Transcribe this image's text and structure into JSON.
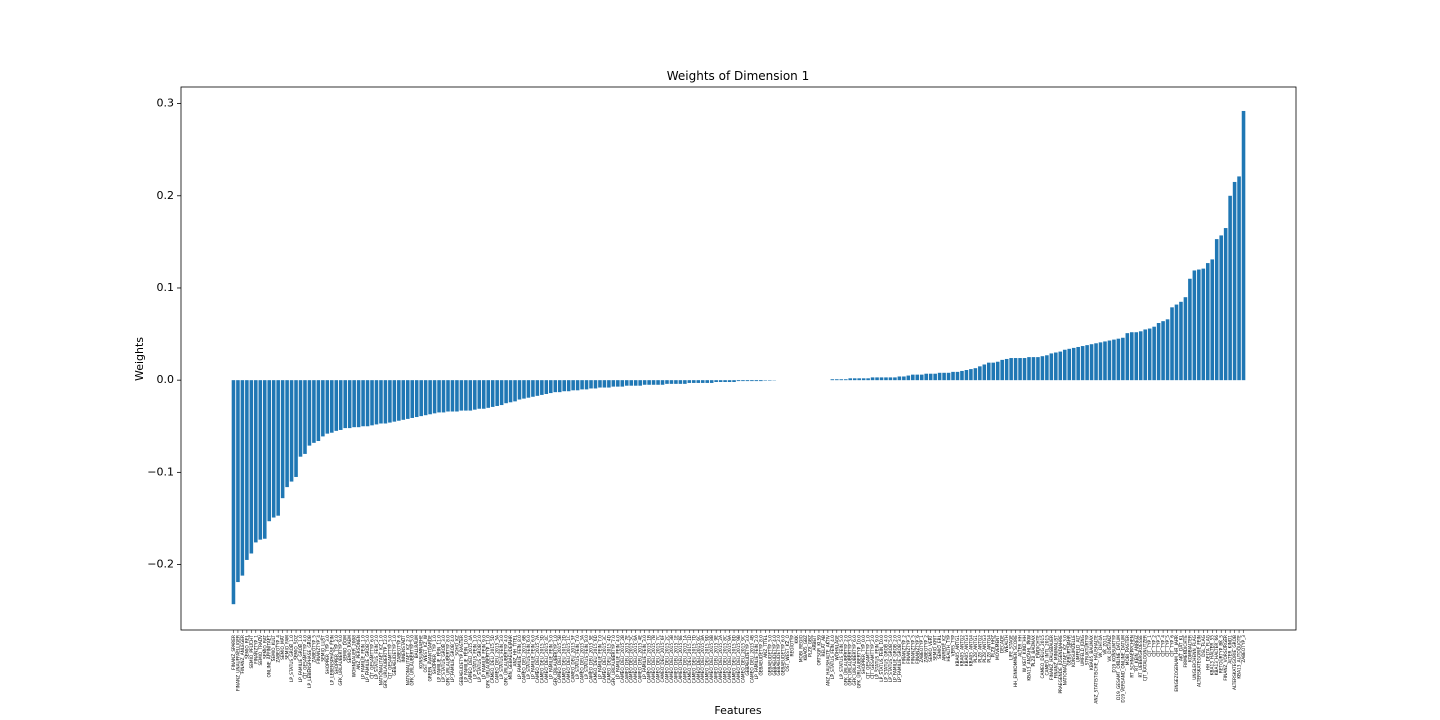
{
  "chart_data": {
    "type": "bar",
    "title": "Weights of Dimension 1",
    "xlabel": "Features",
    "ylabel": "Weights",
    "color": "#1f77b4",
    "categories": [
      "FINANZ_SPARER",
      "FINANZ_UNAUFFAELLIGER",
      "FINANZ_ANLEGER",
      "SEMIO_REL",
      "SEMIO_PFLICHT",
      "FINANZTYP_1",
      "SEMIO_TRADV",
      "SEMIO_RAT",
      "ONLINE_AFFINITAET",
      "SEMIO_KULT",
      "ZABEOTYP_4",
      "SEMIO_MAT",
      "SEMIO_FAM",
      "LP_STATUS_GROB_1.0",
      "SEMIO_SOZ",
      "LP_FAMILIE_GROB_1.0",
      "CJT_GESAMTTYP_4.0",
      "LP_LEBENSPHASE_GROB",
      "ZABEOTYP_5",
      "FINANZTYP_4",
      "SEMIO_LUST",
      "SHOPPER_TYP_3.0",
      "LP_LEBENSPHASE_FEIN",
      "SHOPPER_TYP_2.0",
      "GFK_URLAUBERTYP_9.0",
      "SEMIO_DOM",
      "SEMIO_KAEM",
      "WOHNDAUER_2008",
      "ANZ_PERSONEN",
      "LP_FAMILIE_FEIN_1.0",
      "LP_FAMILIE_GROB_5.0",
      "CJT_GESAMTTYP_6.0",
      "LP_STATUS_FEIN_2.0",
      "NATIONALITAET_KZ_1.0",
      "GFK_URLAUBERTYP_12.0",
      "CJT_GESAMTTYP_5.0",
      "GEBAEUDETYP_1.0",
      "ZABEOTYP_6",
      "INNENSTADT",
      "NATIONALITAET_KZ_2.0",
      "GFK_URLAUBERTYP_5.0",
      "BALLRAUM",
      "KONSUMNAEHE",
      "OST_WEST_KZ_W",
      "GREEN_AVANTGARDE",
      "SHOPPER_TYP_1.0",
      "LP_FAMILIE_FEIN_11.0",
      "LP_STATUS_GROB_3.0",
      "GFK_URLAUBERTYP_8.0",
      "LP_FAMILIE_GROB_4.0",
      "SOHO_KZ",
      "GEBAEUDETYP_RASTER",
      "LP_FAMILIE_FEIN_10.0",
      "CAMEO_DEU_2015_4A",
      "LP_STATUS_FEIN_1.0",
      "LP_STATUS_GROB_2.0",
      "LP_FAMILIE_FEIN_9.0",
      "GFK_URLAUBERTYP_11.0",
      "CAMEO_DEU_2015_5D",
      "CAMEO_DEU_2015_5A",
      "LP_STATUS_FEIN_3.0",
      "GFK_URLAUBERTYP_4.0",
      "MIN_GEBAEUDEJAHR",
      "ANZ_HH_TITEL",
      "LP_FAMILIE_FEIN_8.0",
      "CAMEO_DEU_2015_6B",
      "LP_STATUS_FEIN_6.0",
      "LP_FAMILIE_FEIN_6.0",
      "CAMEO_DEU_2015_7A",
      "CAMEO_DEU_2015_3D",
      "CAMEO_DEU_2015_4C",
      "LP_FAMILIE_FEIN_5.0",
      "GFK_URLAUBERTYP_1.0",
      "CAMEO_DEU_2015_5B",
      "CAMEO_DEU_2015_2D",
      "CAMEO_DEU_2015_1C",
      "CAMEO_DEU_2015_5F",
      "LP_STATUS_FEIN_7.0",
      "CAMEO_DEU_2015_3A",
      "LP_STATUS_FEIN_8.0",
      "CAMEO_DEU_2015_5E",
      "CAMEO_DEU_2015_6D",
      "LP_FAMILIE_FEIN_7.0",
      "CAMEO_DEU_2015_3C",
      "CAMEO_DEU_2015_4D",
      "GFK_URLAUBERTYP_7.0",
      "LP_FAMILIE_FEIN_4.0",
      "CAMEO_DEU_2015_2B",
      "CAMEO_DEU_2015_7E",
      "CAMEO_DEU_2015_5C",
      "CAMEO_DEU_2015_6A",
      "CAMEO_DEU_2015_4E",
      "LP_FAMILIE_FEIN_3.0",
      "CAMEO_DEU_2015_1B",
      "CAMEO_DEU_2015_7B",
      "CAMEO_DEU_2015_7C",
      "CAMEO_DEU_2015_6F",
      "CAMEO_DEU_2015_2C",
      "CAMEO_DEU_2015_3B",
      "CAMEO_DEU_2015_1E",
      "CAMEO_DEU_2015_6E",
      "CAMEO_DEU_2015_1A",
      "CAMEO_DEU_2015_1D",
      "CAMEO_DEU_2015_7D",
      "CAMEO_DEU_2015_6C",
      "CAMEO_DEU_2015_8A",
      "CAMEO_DEU_2015_9D",
      "CAMEO_DEU_2015_8B",
      "CAMEO_DEU_2015_9E",
      "CAMEO_DEU_2015_2A",
      "CAMEO_DEU_2015_8C",
      "CAMEO_DEU_2015_9A",
      "CAMEO_DEU_2015_8D",
      "CAMEO_DEU_2015_9B",
      "CAMEO_DEU_2015_9C",
      "GEBAEUDETYP_3.0",
      "CAMEO_DEU_2015_4B",
      "LP_FAMILIE_FEIN_2.0",
      "GEBAEUDETYP_8.0",
      "ANZ_TITEL",
      "GEBAEUDETYP_5.0",
      "GEBAEUDETYP_4.0",
      "GEBAEUDETYP_2.0",
      "GEBAEUDETYP_6.0",
      "OST_WEST_KZ_O",
      "REGIOTYP",
      "KKK",
      "MOBI_REGIO",
      "KBA05_GBZ",
      "PLZ8_GBZ",
      "ARBEIT",
      "ORTSGR_KLS9",
      "RELAT_AB",
      "ANZ_HAUSHALTE_AKTIV",
      "LP_STATUS_FEIN_4.0",
      "WOHNLAGE",
      "LP_STATUS_FEIN_5.0",
      "GFK_URLAUBERTYP_2.0",
      "GFK_URLAUBERTYP_3.0",
      "GFK_URLAUBERTYP_6.0",
      "GFK_URLAUBERTYP_10.0",
      "SHOPPER_TYP_0.0",
      "CJT_GESAMTTYP_1.0",
      "CJT_GESAMTTYP_2.0",
      "LP_STATUS_FEIN_9.0",
      "LP_STATUS_FEIN_10.0",
      "LP_STATUS_GROB_4.0",
      "LP_STATUS_GROB_5.0",
      "LP_FAMILIE_GROB_2.0",
      "LP_FAMILIE_GROB_3.0",
      "FINANZTYP_2",
      "FINANZTYP_3",
      "FINANZTYP_5",
      "FINANZTYP_6",
      "ZABEOTYP_1",
      "ZABEOTYP_2",
      "SEMIO_VERT",
      "SEMIO_KRIT",
      "SEMIO_ERL",
      "ANREDE_KZ",
      "HEALTH_TYP",
      "VERS_TYP",
      "KBA05_ANTG1",
      "KBA05_ANTG2",
      "KBA05_ANTG3",
      "KBA05_ANTG4",
      "PLZ8_ANTG1",
      "PLZ8_ANTG2",
      "PLZ8_ANTG3",
      "PLZ8_ANTG4",
      "PLZ8_HHZ",
      "MOVEMENT",
      "DECADE",
      "WEALTH",
      "LIFE_STAGE",
      "HH_EINKOMMEN_SCORE",
      "ALTER_HH",
      "W_KEIT_KIND_HH",
      "KBA13_ANZAHL_PKW",
      "PLZ8_BAUMAX",
      "EWDICHTE",
      "CAMEO_DEUG_2015",
      "CAMEO_INTL_2015",
      "FINANZ_HAUSBAUER",
      "FINANZ_MINIMALIST",
      "PRAEGENDE_JUGENDJAHRE",
      "NATIONALITAET_KZ_3.0",
      "GEBURTSJAHR",
      "KONSUMZELLE",
      "UMFELD_ALT",
      "UMFELD_JUNG",
      "STRUKTURTYP",
      "KBA05_BAUMAX",
      "ANZ_STATISTISCHE_HAUSHALTE",
      "VK_DHT4A",
      "VK_ZG11",
      "VK_DISTANZ",
      "D19_KONSUMTYP",
      "D19_GESAMT_ONLINE_DATUM",
      "D19_VERSAND_ONLINE_DATUM",
      "MOBI_RASTER",
      "RT_SCHNAEPPCHEN",
      "RT_KEIN_ANREIZ",
      "RT_UEBERGROESSE",
      "CJT_KATALOGNUTZER",
      "CJT_TYP_1",
      "CJT_TYP_2",
      "CJT_TYP_3",
      "CJT_TYP_4",
      "CJT_TYP_5",
      "CJT_TYP_6",
      "EINGEZOGENAM_HH_JAHR",
      "AKT_DAT_KL",
      "FIRMENDICHTE",
      "KOMBIALTER",
      "UNGLEICHENN_FLAG",
      "ALTERSKATEGORIE_FEIN",
      "DSL_FLAG",
      "HH_DELTA_FLAG",
      "KBA13_HALTER_55",
      "KBA13_HALTER_66",
      "RETOURTYP_BK_S",
      "FINANZ_VORSORGER",
      "ALTER_KIND1",
      "ALTERSKATEGORIE_GROB",
      "KBA13_AUTOQUOTE",
      "ZABEOTYP_3"
    ],
    "values": [
      -0.243,
      -0.219,
      -0.212,
      -0.195,
      -0.188,
      -0.176,
      -0.173,
      -0.172,
      -0.153,
      -0.149,
      -0.147,
      -0.128,
      -0.116,
      -0.11,
      -0.105,
      -0.083,
      -0.08,
      -0.071,
      -0.068,
      -0.066,
      -0.061,
      -0.058,
      -0.057,
      -0.055,
      -0.054,
      -0.052,
      -0.052,
      -0.051,
      -0.051,
      -0.05,
      -0.05,
      -0.049,
      -0.048,
      -0.047,
      -0.047,
      -0.046,
      -0.045,
      -0.044,
      -0.043,
      -0.042,
      -0.041,
      -0.04,
      -0.039,
      -0.038,
      -0.037,
      -0.036,
      -0.035,
      -0.035,
      -0.034,
      -0.034,
      -0.034,
      -0.033,
      -0.033,
      -0.033,
      -0.032,
      -0.031,
      -0.031,
      -0.03,
      -0.029,
      -0.028,
      -0.027,
      -0.025,
      -0.024,
      -0.023,
      -0.021,
      -0.02,
      -0.019,
      -0.018,
      -0.017,
      -0.016,
      -0.015,
      -0.014,
      -0.013,
      -0.013,
      -0.012,
      -0.012,
      -0.011,
      -0.011,
      -0.01,
      -0.01,
      -0.009,
      -0.009,
      -0.008,
      -0.008,
      -0.008,
      -0.007,
      -0.007,
      -0.007,
      -0.006,
      -0.006,
      -0.006,
      -0.006,
      -0.005,
      -0.005,
      -0.005,
      -0.005,
      -0.005,
      -0.004,
      -0.004,
      -0.004,
      -0.004,
      -0.004,
      -0.003,
      -0.003,
      -0.003,
      -0.003,
      -0.003,
      -0.003,
      -0.002,
      -0.002,
      -0.002,
      -0.002,
      -0.002,
      -0.001,
      -0.001,
      -0.001,
      -0.001,
      -0.001,
      -0.001,
      -0.0005,
      -0.0005,
      -0.0003,
      0,
      0,
      0,
      0,
      0,
      0,
      0,
      0,
      0,
      0,
      0,
      0,
      0.001,
      0.001,
      0.001,
      0.001,
      0.002,
      0.002,
      0.002,
      0.002,
      0.002,
      0.003,
      0.003,
      0.003,
      0.003,
      0.003,
      0.003,
      0.004,
      0.004,
      0.005,
      0.006,
      0.006,
      0.006,
      0.007,
      0.007,
      0.007,
      0.008,
      0.008,
      0.008,
      0.009,
      0.009,
      0.01,
      0.011,
      0.012,
      0.013,
      0.015,
      0.017,
      0.019,
      0.019,
      0.02,
      0.022,
      0.023,
      0.024,
      0.024,
      0.024,
      0.024,
      0.025,
      0.025,
      0.025,
      0.026,
      0.027,
      0.029,
      0.03,
      0.031,
      0.033,
      0.034,
      0.035,
      0.036,
      0.037,
      0.038,
      0.039,
      0.04,
      0.041,
      0.042,
      0.043,
      0.044,
      0.045,
      0.046,
      0.051,
      0.052,
      0.052,
      0.053,
      0.055,
      0.056,
      0.058,
      0.062,
      0.064,
      0.066,
      0.079,
      0.082,
      0.085,
      0.09,
      0.11,
      0.119,
      0.12,
      0.121,
      0.127,
      0.131,
      0.153,
      0.157,
      0.165,
      0.2,
      0.215,
      0.221,
      0.292
    ],
    "ylim": [
      -0.271,
      0.318
    ],
    "yticks": [
      {
        "value": -0.2,
        "label": "−0.2"
      },
      {
        "value": -0.1,
        "label": "−0.1"
      },
      {
        "value": 0,
        "label": "0.0"
      },
      0.1,
      0.2,
      0.3
    ]
  }
}
